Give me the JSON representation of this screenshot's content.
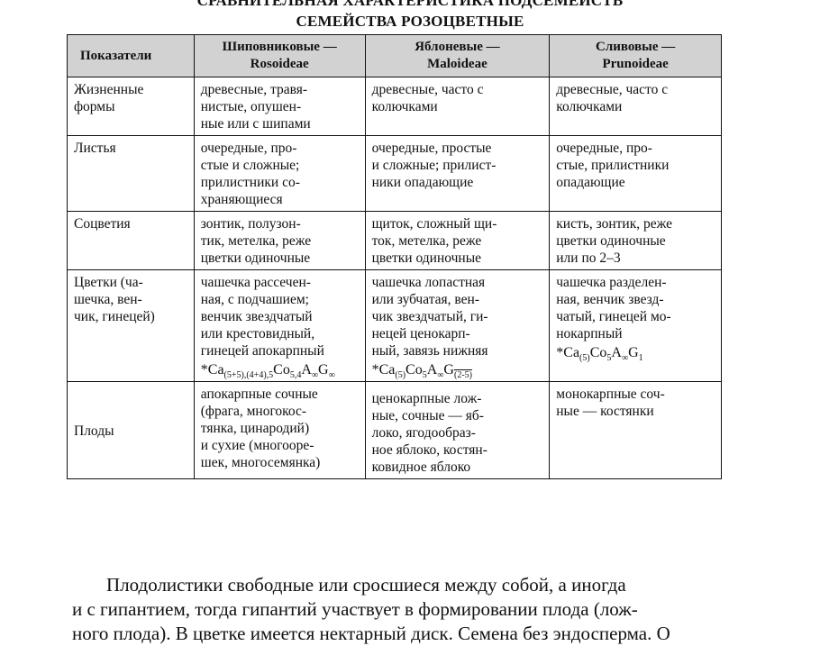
{
  "title": {
    "line1": "СРАВНИТЕЛЬНАЯ ХАРАКТЕРИСТИКА ПОДСЕМЕЙСТВ",
    "line2": "СЕМЕЙСТВА РОЗОЦВЕТНЫЕ"
  },
  "table": {
    "headers": [
      [
        "Показатели"
      ],
      [
        "Шиповниковые —",
        "Rosoideae"
      ],
      [
        "Яблоневые —",
        "Maloideae"
      ],
      [
        "Сливовые —",
        "Prunoideae"
      ]
    ],
    "rows": [
      {
        "cells": [
          [
            "Жизненные",
            "формы"
          ],
          [
            "древесные, травя-",
            "нистые, опушен-",
            "ные или с шипами"
          ],
          [
            "древесные, часто с",
            "колючками"
          ],
          [
            "древесные, часто с",
            "колючками"
          ]
        ]
      },
      {
        "cells": [
          [
            "Листья"
          ],
          [
            "очередные, про-",
            "стые и сложные;",
            "прилистники со-",
            "храняющиеся"
          ],
          [
            "очередные, простые",
            "и сложные; прилист-",
            "ники опадающие"
          ],
          [
            "очередные, про-",
            "стые, прилистники",
            "опадающие"
          ]
        ]
      },
      {
        "cells": [
          [
            "Соцветия"
          ],
          [
            "зонтик, полузон-",
            "тик, метелка, реже",
            "цветки одиночные"
          ],
          [
            "щиток, сложный щи-",
            "ток, метелка, реже",
            "цветки одиночные"
          ],
          [
            "кисть, зонтик, реже",
            "цветки одиночные",
            "или по 2–3"
          ]
        ]
      },
      {
        "cells": [
          [
            "Цветки (ча-",
            "шечка, вен-",
            "чик, гинецей)"
          ],
          [
            "чашечка рассечен-",
            "ная, с подчашием;",
            "венчик звездчатый",
            "или крестовидный,",
            "гинецей апокарпный"
          ],
          [
            "чашечка лопастная",
            "или зубчатая, вен-",
            "чик звездчатый, ги-",
            "нецей ценокарп-",
            "ный, завязь нижняя"
          ],
          [
            "чашечка разделен-",
            "ная, венчик звезд-",
            "чатый, гинецей мо-",
            "нокарпный"
          ]
        ],
        "formulas": [
          null,
          [
            {
              "t": "*Ca",
              "s": "(5+5),(4+4),5"
            },
            {
              "t": "Co",
              "s": "5,4"
            },
            {
              "t": "A",
              "s": "∞"
            },
            {
              "t": "G",
              "s": "∞"
            }
          ],
          [
            {
              "t": "*Ca",
              "s": "(5)"
            },
            {
              "t": "Co",
              "s": "5"
            },
            {
              "t": "A",
              "s": "∞"
            },
            {
              "t": "G",
              "s": "(2-5)",
              "over": true
            }
          ],
          [
            {
              "t": "*Ca",
              "s": "(5)"
            },
            {
              "t": "Co",
              "s": "5"
            },
            {
              "t": "A",
              "s": "∞"
            },
            {
              "t": "G",
              "s": "1"
            }
          ]
        ]
      },
      {
        "cells": [
          [
            "Плоды"
          ],
          [
            "апокарпные сочные",
            "(фрага, многокос-",
            "тянка, цинародий)",
            "и сухие (многооре-",
            "шек, многосемянка)"
          ],
          [
            "ценокарпные лож-",
            "ные, сочные — яб-",
            "локо, ягодообраз-",
            "ное яблоко, костян-",
            "ковидное яблоко"
          ],
          [
            "монокарпные соч-",
            "ные — костянки"
          ]
        ]
      }
    ]
  },
  "paragraph": [
    "Плодолистики свободные или сросшиеся между собой, а иногда",
    "и с гипантием, тогда гипантий участвует в формировании плода (лож-",
    "ного плода). В цветке имеется нектарный диск. Семена без эндосперма. О"
  ]
}
